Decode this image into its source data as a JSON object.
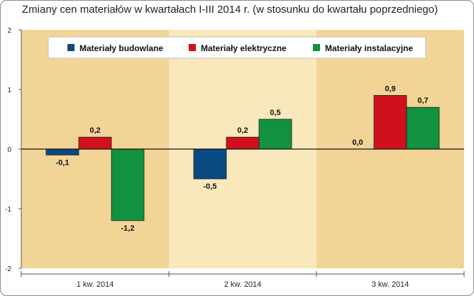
{
  "title": "Zmiany cen materiałów w kwartałach I-III 2014 r. (w stosunku do kwartału poprzedniego)",
  "colors": {
    "panel_a": "#f2d596",
    "panel_b": "#f8e8bb",
    "budowlane": "#0a4a82",
    "elektryczne": "#d0101c",
    "instalacyjne": "#129140"
  },
  "chart_data": {
    "type": "bar",
    "categories": [
      "1 kw. 2014",
      "2 kw. 2014",
      "3 kw. 2014"
    ],
    "series": [
      {
        "name": "Materiały budowlane",
        "color": "#0a4a82",
        "values": [
          -0.1,
          -0.5,
          0.0
        ],
        "labels": [
          "-0,1",
          "-0,5",
          "0,0"
        ]
      },
      {
        "name": "Materiały elektryczne",
        "color": "#d0101c",
        "values": [
          0.2,
          0.2,
          0.9
        ],
        "labels": [
          "0,2",
          "0,2",
          "0,9"
        ]
      },
      {
        "name": "Materiały instalacyjne",
        "color": "#129140",
        "values": [
          -1.2,
          0.5,
          0.7
        ],
        "labels": [
          "-1,2",
          "0,5",
          "0,7"
        ]
      }
    ],
    "yticks": [
      2,
      1,
      0,
      -1,
      -2
    ],
    "yticklabels": [
      "2",
      "1",
      "0",
      "-1",
      "-2"
    ],
    "ylim": [
      -2,
      2
    ],
    "legend_position": "top",
    "grid": false
  }
}
